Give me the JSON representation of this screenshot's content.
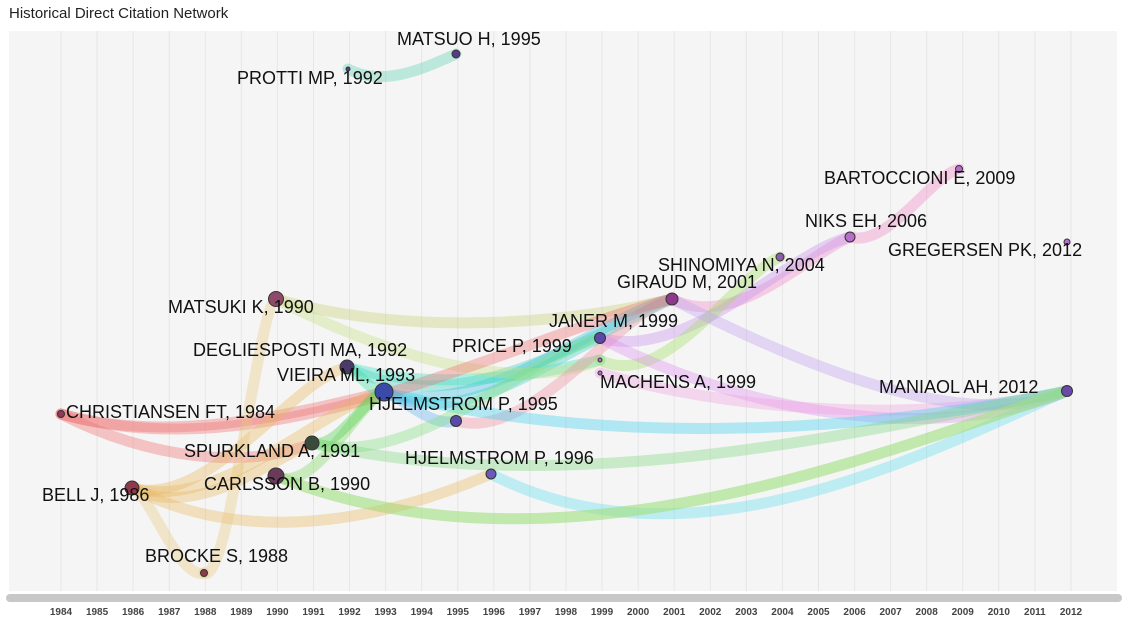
{
  "title": "Historical Direct Citation Network",
  "years": [
    "1984",
    "1985",
    "1986",
    "1987",
    "1988",
    "1989",
    "1990",
    "1991",
    "1992",
    "1993",
    "1994",
    "1995",
    "1996",
    "1997",
    "1998",
    "1999",
    "2000",
    "2001",
    "2002",
    "2003",
    "2004",
    "2005",
    "2006",
    "2007",
    "2008",
    "2009",
    "2010",
    "2011",
    "2012"
  ],
  "nodes": [
    {
      "id": "matsuo",
      "label": "MATSUO H, 1995",
      "year": 1995,
      "color": "#5a3a8a"
    },
    {
      "id": "protti",
      "label": "PROTTI MP, 1992",
      "year": 1992,
      "color": "#5a3a8a"
    },
    {
      "id": "bartoccioni",
      "label": "BARTOCCIONI E, 2009",
      "year": 2009,
      "color": "#b56ec9"
    },
    {
      "id": "niks",
      "label": "NIKS EH, 2006",
      "year": 2006,
      "color": "#b56ec9"
    },
    {
      "id": "gregersen",
      "label": "GREGERSEN PK, 2012",
      "year": 2012,
      "color": "#b56ec9"
    },
    {
      "id": "shinomiya",
      "label": "SHINOMIYA N, 2004",
      "year": 2004,
      "color": "#8a5ea8"
    },
    {
      "id": "giraud",
      "label": "GIRAUD M, 2001",
      "year": 2001,
      "color": "#8e3a8a"
    },
    {
      "id": "matsuki",
      "label": "MATSUKI K, 1990",
      "year": 1990,
      "color": "#8e4a6a"
    },
    {
      "id": "janer",
      "label": "JANER M, 1999",
      "year": 1999,
      "color": "#5a4aa8"
    },
    {
      "id": "price",
      "label": "PRICE P, 1999",
      "year": 1999,
      "color": "#b56ec9"
    },
    {
      "id": "degliesposti",
      "label": "DEGLIESPOSTI MA, 1992",
      "year": 1992,
      "color": "#4a3a6a"
    },
    {
      "id": "vieira",
      "label": "VIEIRA ML, 1993",
      "year": 1993,
      "color": "#3a4aa8"
    },
    {
      "id": "machens",
      "label": "MACHENS A, 1999",
      "year": 1999,
      "color": "#b56ec9"
    },
    {
      "id": "maniaol",
      "label": "MANIAOL AH, 2012",
      "year": 2012,
      "color": "#6a4aa8"
    },
    {
      "id": "christiansen",
      "label": "CHRISTIANSEN FT, 1984",
      "year": 1984,
      "color": "#8e3a5a"
    },
    {
      "id": "hjelmstrom95",
      "label": "HJELMSTROM P, 1995",
      "year": 1995,
      "color": "#5a4aa8"
    },
    {
      "id": "spurkland",
      "label": "SPURKLAND A, 1991",
      "year": 1991,
      "color": "#3a4a3a"
    },
    {
      "id": "hjelmstrom96",
      "label": "HJELMSTROM P, 1996",
      "year": 1996,
      "color": "#6a5ab8"
    },
    {
      "id": "bell",
      "label": "BELL J, 1986",
      "year": 1986,
      "color": "#8e3a4a"
    },
    {
      "id": "carlsson",
      "label": "CARLSSON B, 1990",
      "year": 1990,
      "color": "#6a3a5a"
    },
    {
      "id": "brocke",
      "label": "BROCKE S, 1988",
      "year": 1988,
      "color": "#8e3a4a"
    }
  ],
  "edges": [
    {
      "from": "protti",
      "to": "matsuo",
      "color": "#5fd3b0"
    },
    {
      "from": "niks",
      "to": "bartoccioni",
      "color": "#f08ac8"
    },
    {
      "from": "giraud",
      "to": "niks",
      "color": "#f08ac8"
    },
    {
      "from": "janer",
      "to": "niks",
      "color": "#c890f0"
    },
    {
      "from": "price",
      "to": "shinomiya",
      "color": "#a0e060"
    },
    {
      "from": "matsuki",
      "to": "giraud",
      "color": "#c8d070"
    },
    {
      "from": "degliesposti",
      "to": "giraud",
      "color": "#40d0c0"
    },
    {
      "from": "vieira",
      "to": "giraud",
      "color": "#40c0e0"
    },
    {
      "from": "vieira",
      "to": "janer",
      "color": "#40d0d0"
    },
    {
      "from": "degliesposti",
      "to": "price",
      "color": "#40e0c0"
    },
    {
      "from": "matsuki",
      "to": "price",
      "color": "#c8e080"
    },
    {
      "from": "hjelmstrom95",
      "to": "giraud",
      "color": "#f090a0"
    },
    {
      "from": "janer",
      "to": "maniaol",
      "color": "#e090f0"
    },
    {
      "from": "machens",
      "to": "maniaol",
      "color": "#f0a0e0"
    },
    {
      "from": "giraud",
      "to": "maniaol",
      "color": "#c0a0f0"
    },
    {
      "from": "vieira",
      "to": "maniaol",
      "color": "#40d0f0"
    },
    {
      "from": "hjelmstrom96",
      "to": "maniaol",
      "color": "#60e0f0"
    },
    {
      "from": "spurkland",
      "to": "maniaol",
      "color": "#80d880"
    },
    {
      "from": "carlsson",
      "to": "maniaol",
      "color": "#a0e080"
    },
    {
      "from": "christiansen",
      "to": "giraud",
      "color": "#f07070"
    },
    {
      "from": "christiansen",
      "to": "spurkland",
      "color": "#f07070"
    },
    {
      "from": "christiansen",
      "to": "vieira",
      "color": "#f07070"
    },
    {
      "from": "bell",
      "to": "spurkland",
      "color": "#e8b860"
    },
    {
      "from": "bell",
      "to": "vieira",
      "color": "#e8b860"
    },
    {
      "from": "bell",
      "to": "hjelmstrom96",
      "color": "#e8b860"
    },
    {
      "from": "bell",
      "to": "degliesposti",
      "color": "#e8b860"
    },
    {
      "from": "brocke",
      "to": "matsuki",
      "color": "#e8c880"
    },
    {
      "from": "brocke",
      "to": "bell",
      "color": "#e8c880"
    },
    {
      "from": "carlsson",
      "to": "vieira",
      "color": "#80d860"
    },
    {
      "from": "spurkland",
      "to": "vieira",
      "color": "#50d050"
    },
    {
      "from": "degliesposti",
      "to": "vieira",
      "color": "#40e0a0"
    },
    {
      "from": "hjelmstrom95",
      "to": "vieira",
      "color": "#60b0f0"
    },
    {
      "from": "carlsson",
      "to": "maniaol",
      "color": "#a0e080"
    },
    {
      "from": "spurkland",
      "to": "janer",
      "color": "#80e080"
    }
  ]
}
